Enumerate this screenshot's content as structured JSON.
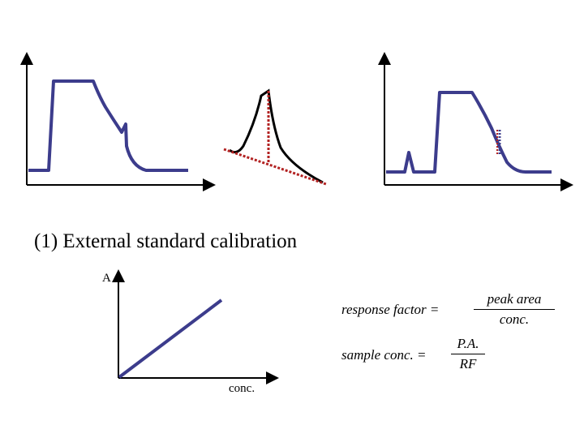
{
  "heading": "(1) External standard calibration",
  "calibration_plot": {
    "y_label": "A",
    "x_label": "conc."
  },
  "formulas": {
    "response_factor": {
      "lhs": "response   factor =",
      "numerator": "peak   area",
      "denominator": "conc."
    },
    "sample_conc": {
      "lhs": "sample   conc. =",
      "numerator": "P.A.",
      "denominator": "RF"
    }
  },
  "colors": {
    "trace": "#3c3c8c",
    "axis": "#000000",
    "baseline_dotted": "#b22222",
    "peak_black": "#000000"
  }
}
